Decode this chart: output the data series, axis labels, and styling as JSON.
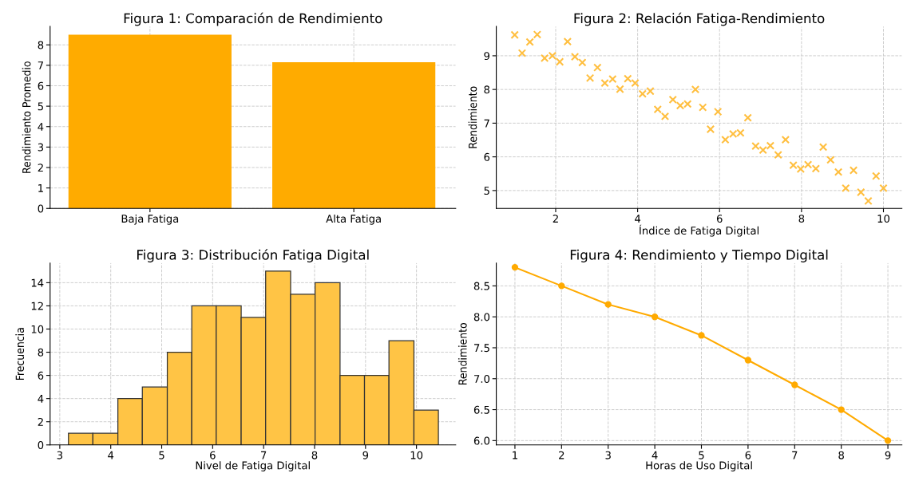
{
  "chart_data": [
    {
      "type": "bar",
      "title": "Figura 1: Comparación de Rendimiento",
      "ylabel": "Rendimiento Promedio",
      "categories": [
        "Baja Fatiga",
        "Alta Fatiga"
      ],
      "values": [
        8.5,
        7.15
      ],
      "color": "#ffab00",
      "ylim": [
        0,
        8.9
      ],
      "yticks": [
        0,
        1,
        2,
        3,
        4,
        5,
        6,
        7,
        8
      ],
      "grid": true
    },
    {
      "type": "scatter",
      "title": "Figura 2: Relación Fatiga-Rendimiento",
      "xlabel": "Índice de Fatiga Digital",
      "ylabel": "Rendimiento",
      "marker": "cross",
      "color": "#ffbf40",
      "x": [
        1.0,
        1.18,
        1.37,
        1.55,
        1.73,
        1.92,
        2.1,
        2.29,
        2.47,
        2.65,
        2.84,
        3.02,
        3.2,
        3.39,
        3.57,
        3.76,
        3.94,
        4.12,
        4.31,
        4.49,
        4.67,
        4.86,
        5.04,
        5.22,
        5.41,
        5.59,
        5.78,
        5.96,
        6.14,
        6.33,
        6.51,
        6.69,
        6.88,
        7.06,
        7.24,
        7.43,
        7.61,
        7.8,
        7.98,
        8.16,
        8.35,
        8.53,
        8.71,
        8.9,
        9.08,
        9.27,
        9.45,
        9.63,
        9.82,
        10.0
      ],
      "values": [
        9.62,
        9.08,
        9.41,
        9.63,
        8.93,
        9.0,
        8.82,
        9.42,
        8.97,
        8.8,
        8.34,
        8.65,
        8.19,
        8.31,
        8.01,
        8.32,
        8.19,
        7.87,
        7.95,
        7.41,
        7.2,
        7.7,
        7.52,
        7.57,
        8.0,
        7.47,
        6.82,
        7.34,
        6.51,
        6.68,
        6.71,
        7.16,
        6.32,
        6.2,
        6.33,
        6.06,
        6.51,
        5.75,
        5.64,
        5.77,
        5.65,
        6.29,
        5.91,
        5.55,
        5.07,
        5.6,
        4.95,
        4.69,
        5.43,
        5.07
      ],
      "xlim": [
        0.55,
        10.45
      ],
      "xticks": [
        2,
        4,
        6,
        8,
        10
      ],
      "ylim": [
        4.47,
        9.87
      ],
      "yticks": [
        5,
        6,
        7,
        8,
        9
      ],
      "grid": true
    },
    {
      "type": "histogram",
      "title": "Figura 3: Distribución Fatiga Digital",
      "xlabel": "Nivel de Fatiga Digital",
      "ylabel": "Frecuencia",
      "color": "#ffc445",
      "bins": [
        3.17,
        3.65,
        4.14,
        4.62,
        5.11,
        5.59,
        6.07,
        6.56,
        7.04,
        7.53,
        8.01,
        8.5,
        8.98,
        9.46,
        9.95,
        10.43
      ],
      "values": [
        1,
        1,
        4,
        5,
        8,
        12,
        12,
        11,
        15,
        13,
        14,
        6,
        6,
        9,
        3
      ],
      "xlim": [
        2.81,
        10.77
      ],
      "xticks": [
        3,
        4,
        5,
        6,
        7,
        8,
        9,
        10
      ],
      "ylim": [
        0,
        15.7
      ],
      "yticks": [
        0,
        2,
        4,
        6,
        8,
        10,
        12,
        14
      ],
      "grid": true
    },
    {
      "type": "line",
      "title": "Figura 4: Rendimiento y Tiempo Digital",
      "xlabel": "Horas de Uso Digital",
      "ylabel": "Rendimiento",
      "marker": "circle",
      "line_style": "solid",
      "color": "#ffaa00",
      "x": [
        1,
        2,
        3,
        4,
        5,
        6,
        7,
        8,
        9
      ],
      "values": [
        8.8,
        8.5,
        8.2,
        8.0,
        7.7,
        7.3,
        6.9,
        6.5,
        6.0
      ],
      "xlim": [
        0.6,
        9.3
      ],
      "xticks": [
        1,
        2,
        3,
        4,
        5,
        6,
        7,
        8,
        9
      ],
      "ylim": [
        5.93,
        8.87
      ],
      "yticks": [
        {
          "value": 6.0,
          "label": "6.0"
        },
        6.5,
        {
          "value": 7.0,
          "label": "7.0"
        },
        7.5,
        {
          "value": 8.0,
          "label": "8.0"
        },
        8.5
      ],
      "grid": true
    }
  ]
}
